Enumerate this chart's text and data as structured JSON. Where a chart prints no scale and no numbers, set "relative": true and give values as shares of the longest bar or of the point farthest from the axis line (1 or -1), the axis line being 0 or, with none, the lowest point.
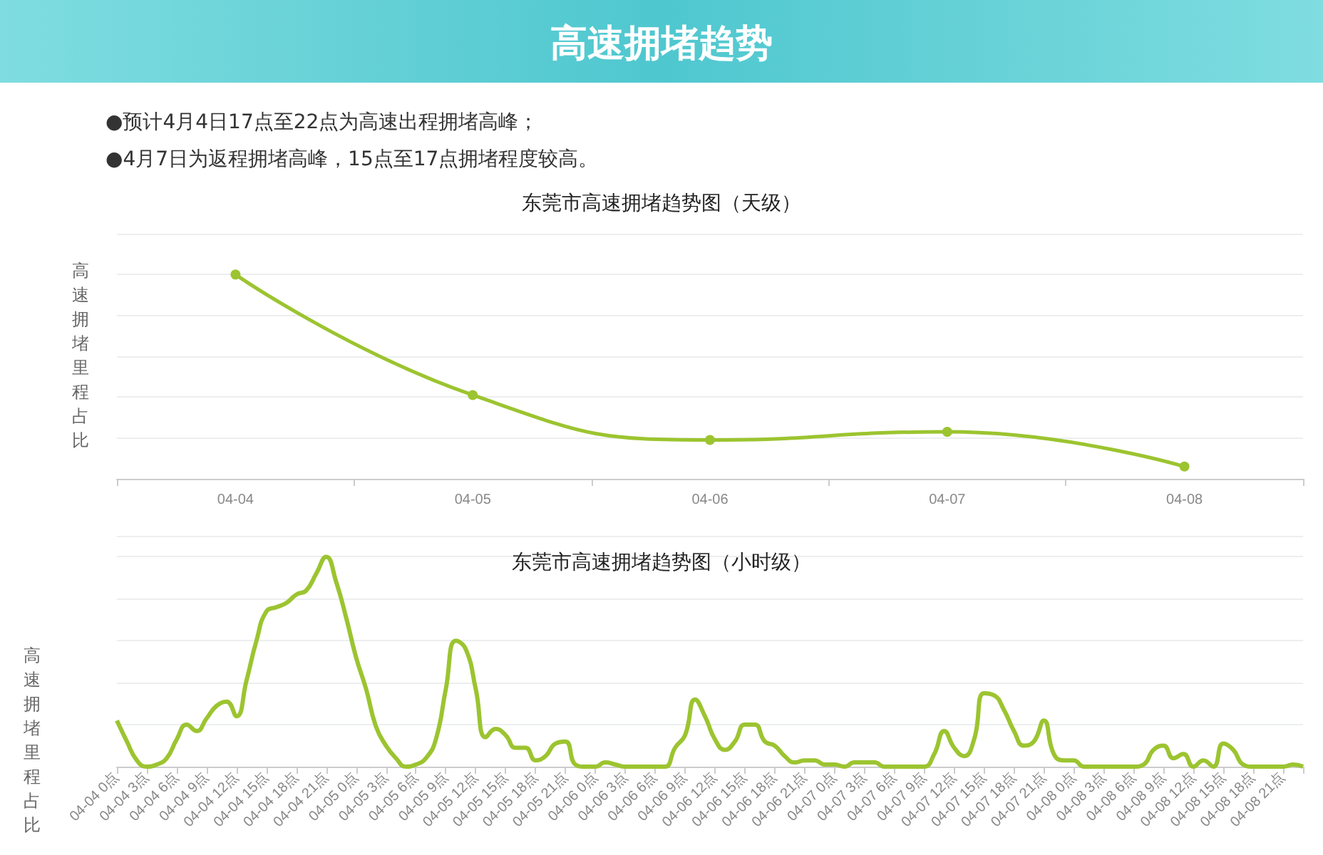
{
  "chart_data": [
    {
      "type": "line",
      "title": "东莞市高速拥堵趋势图（天级）",
      "ylabel": "高速拥堵里程占比",
      "annotations": [
        "高速拥堵趋势",
        "●预计4月4日17点至22点为高速出程拥堵高峰；",
        "●4月7日为返程拥堵高峰，15点至17点拥堵程度较高。"
      ],
      "relative": true,
      "grid": "y",
      "marker": "circle",
      "line_style": "solid",
      "categories": [
        "04-04",
        "04-05",
        "04-06",
        "04-07",
        "04-08"
      ],
      "series": [
        {
          "color": "#9cc430",
          "values": [
            1,
            0.41,
            0.19,
            0.23,
            0.06
          ]
        }
      ]
    },
    {
      "type": "line",
      "title": "东莞市高速拥堵趋势图（小时级）",
      "ylabel": "高速拥堵里程占比",
      "relative": true,
      "grid": "y",
      "marker": "none",
      "line_style": "solid",
      "categories": [
        "04-04 0点",
        null,
        null,
        "04-04 3点",
        null,
        null,
        "04-04 6点",
        null,
        null,
        "04-04 9点",
        null,
        null,
        "04-04 12点",
        null,
        null,
        "04-04 15点",
        null,
        null,
        "04-04 18点",
        null,
        null,
        "04-04 21点",
        null,
        null,
        "04-05 0点",
        null,
        null,
        "04-05 3点",
        null,
        null,
        "04-05 6点",
        null,
        null,
        "04-05 9点",
        null,
        null,
        "04-05 12点",
        null,
        null,
        "04-05 15点",
        null,
        null,
        "04-05 18点",
        null,
        null,
        "04-05 21点",
        null,
        null,
        "04-06 0点",
        null,
        null,
        "04-06 3点",
        null,
        null,
        "04-06 6点",
        null,
        null,
        "04-06 9点",
        null,
        null,
        "04-06 12点",
        null,
        null,
        "04-06 15点",
        null,
        null,
        "04-06 18点",
        null,
        null,
        "04-06 21点",
        null,
        null,
        "04-07 0点",
        null,
        null,
        "04-07 3点",
        null,
        null,
        "04-07 6点",
        null,
        null,
        "04-07 9点",
        null,
        null,
        "04-07 12点",
        null,
        null,
        "04-07 15点",
        null,
        null,
        "04-07 18点",
        null,
        null,
        "04-07 21点",
        null,
        null,
        "04-08 0点",
        null,
        null,
        "04-08 3点",
        null,
        null,
        "04-08 6点",
        null,
        null,
        "04-08 9点",
        null,
        null,
        "04-08 12点",
        null,
        null,
        "04-08 15点",
        null,
        null,
        "04-08 18点",
        null,
        null,
        "04-08 21点",
        null,
        null
      ],
      "series": [
        {
          "color": "#9cc430",
          "values": [
            0.22,
            0.12,
            0.03,
            0,
            0.01,
            0.04,
            0.13,
            0.2,
            0.17,
            0.23,
            0.29,
            0.31,
            0.24,
            0.41,
            0.6,
            0.74,
            0.76,
            0.78,
            0.82,
            0.84,
            0.92,
            1,
            0.88,
            0.71,
            0.52,
            0.37,
            0.19,
            0.1,
            0.04,
            0,
            0.01,
            0.04,
            0.13,
            0.37,
            0.6,
            0.56,
            0.37,
            0.14,
            0.18,
            0.15,
            0.09,
            0.09,
            0.03,
            0.05,
            0.11,
            0.12,
            0.01,
            0,
            0,
            0.02,
            0.01,
            0,
            0,
            0,
            0,
            0,
            0.09,
            0.15,
            0.32,
            0.24,
            0.13,
            0.08,
            0.12,
            0.2,
            0.2,
            0.12,
            0.1,
            0.05,
            0.02,
            0.03,
            0.03,
            0.01,
            0.01,
            0,
            0.02,
            0.02,
            0.02,
            0,
            0,
            0,
            0,
            0,
            0.06,
            0.17,
            0.09,
            0.05,
            0.13,
            0.35,
            0.34,
            0.27,
            0.17,
            0.1,
            0.12,
            0.22,
            0.06,
            0.03,
            0.03,
            0,
            0,
            0,
            0,
            0,
            0,
            0.01,
            0.08,
            0.1,
            0.04,
            0.06,
            0,
            0.03,
            0,
            0.11,
            0.08,
            0.01,
            0,
            0,
            0,
            0,
            0.01,
            0
          ]
        }
      ]
    }
  ]
}
